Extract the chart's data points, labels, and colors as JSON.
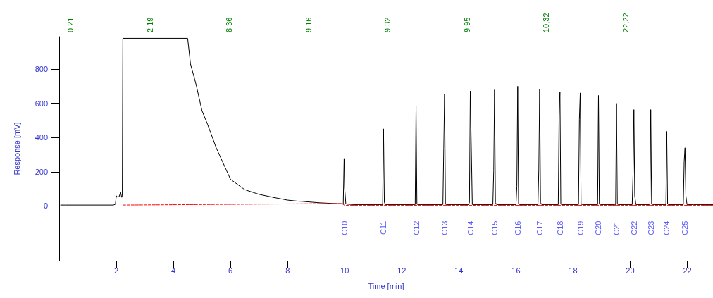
{
  "chart_data": {
    "type": "line",
    "xlabel": "Time [min]",
    "ylabel": "Response [mV]",
    "xlim": [
      0,
      22.9
    ],
    "xticks": [
      2,
      4,
      6,
      8,
      10,
      12,
      14,
      16,
      18,
      20,
      22
    ],
    "ylim": [
      -320,
      990
    ],
    "yticks": [
      0,
      200,
      400,
      600,
      800
    ],
    "grid": false,
    "marker": "none",
    "series": [
      {
        "color": "#000000",
        "line_style": "solid",
        "x": [
          0.05,
          0.21,
          1.9,
          1.97,
          2.0,
          2.05,
          2.1,
          2.15,
          2.19,
          2.21,
          2.23,
          4.5,
          4.6,
          4.8,
          5.0,
          5.2,
          5.5,
          6.0,
          6.5,
          7.0,
          7.5,
          8.0,
          8.36,
          8.5,
          9.0,
          9.16,
          9.32,
          9.5,
          9.9,
          9.95,
          9.98,
          10.0,
          10.04,
          10.1,
          10.32,
          11.3,
          11.33,
          11.36,
          11.39,
          11.43,
          12.44,
          12.47,
          12.5,
          12.53,
          12.57,
          13.44,
          13.47,
          13.5,
          13.53,
          13.57,
          14.34,
          14.37,
          14.4,
          14.43,
          14.47,
          15.19,
          15.22,
          15.25,
          15.28,
          15.32,
          16.0,
          16.03,
          16.06,
          16.09,
          16.13,
          16.77,
          16.8,
          16.83,
          16.86,
          16.9,
          17.48,
          17.51,
          17.54,
          17.57,
          17.61,
          18.19,
          18.22,
          18.25,
          18.28,
          18.32,
          18.83,
          18.86,
          18.89,
          18.92,
          18.96,
          19.46,
          19.49,
          19.52,
          19.55,
          19.59,
          20.07,
          20.1,
          20.13,
          20.16,
          20.2,
          20.66,
          20.69,
          20.72,
          20.75,
          20.79,
          21.22,
          21.25,
          21.28,
          21.31,
          21.35,
          21.86,
          21.89,
          21.92,
          21.95,
          21.99,
          22.22,
          22.9
        ],
        "values": [
          5,
          5,
          5,
          10,
          60,
          50,
          55,
          80,
          50,
          60,
          980,
          980,
          830,
          707,
          558,
          476,
          340,
          156,
          95,
          68,
          50,
          34,
          28,
          27,
          20,
          18,
          17,
          15,
          12,
          12,
          278,
          107,
          12,
          10,
          8,
          8,
          8,
          451,
          20,
          8,
          8,
          8,
          583,
          10,
          8,
          8,
          336,
          656,
          10,
          8,
          8,
          20,
          672,
          389,
          8,
          8,
          204,
          679,
          20,
          8,
          8,
          114,
          700,
          10,
          8,
          8,
          215,
          685,
          20,
          8,
          8,
          531,
          667,
          10,
          8,
          8,
          507,
          661,
          10,
          8,
          8,
          8,
          646,
          10,
          8,
          8,
          8,
          600,
          10,
          8,
          8,
          188,
          563,
          60,
          8,
          8,
          8,
          563,
          10,
          8,
          8,
          8,
          436,
          10,
          8,
          8,
          260,
          340,
          60,
          8,
          8,
          8
        ]
      },
      {
        "color": "#ff0000",
        "line_style": "dashed",
        "x": [
          2.23,
          9.9,
          10.0,
          22.9
        ],
        "values": [
          5,
          14,
          3,
          3
        ]
      }
    ],
    "annotations": [
      "0,21",
      "2,19",
      "8,36",
      "9,16",
      "9,32",
      "9,95",
      "10,32",
      "22,22",
      {
        "text": "C10",
        "x": 10.0,
        "y": 3
      },
      {
        "text": "C11",
        "x": 11.36,
        "y": 3
      },
      {
        "text": "C12",
        "x": 12.5,
        "y": 3
      },
      {
        "text": "C13",
        "x": 13.5,
        "y": 3
      },
      {
        "text": "C14",
        "x": 14.4,
        "y": 3
      },
      {
        "text": "C15",
        "x": 15.25,
        "y": 3
      },
      {
        "text": "C16",
        "x": 16.06,
        "y": 3
      },
      {
        "text": "C17",
        "x": 16.83,
        "y": 3
      },
      {
        "text": "C18",
        "x": 17.54,
        "y": 3
      },
      {
        "text": "C19",
        "x": 18.25,
        "y": 3
      },
      {
        "text": "C20",
        "x": 18.89,
        "y": 3
      },
      {
        "text": "C21",
        "x": 19.52,
        "y": 3
      },
      {
        "text": "C22",
        "x": 20.13,
        "y": 3
      },
      {
        "text": "C23",
        "x": 20.72,
        "y": 3
      },
      {
        "text": "C24",
        "x": 21.28,
        "y": 3
      },
      {
        "text": "C25",
        "x": 21.92,
        "y": 3
      }
    ]
  }
}
